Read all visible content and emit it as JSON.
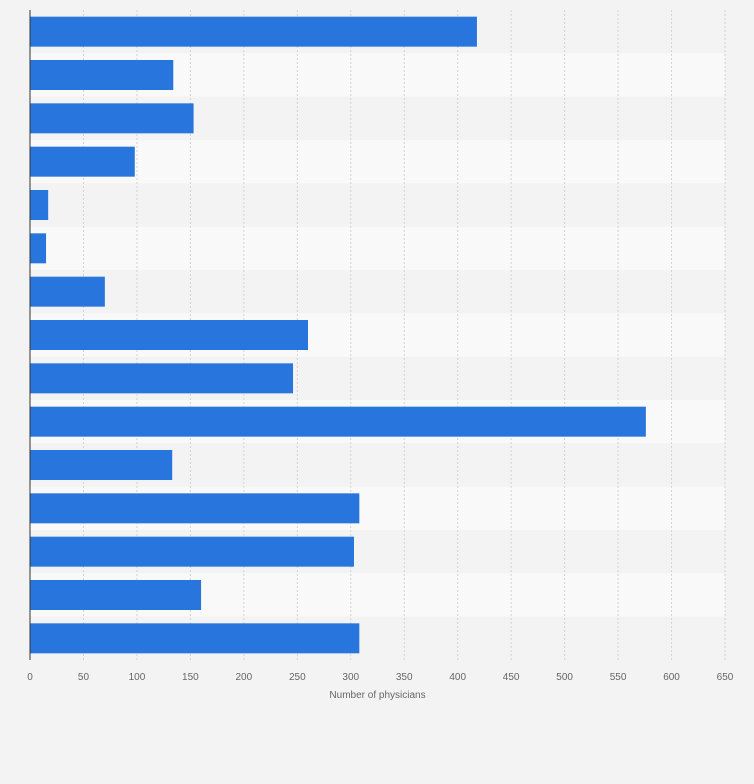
{
  "chart_data": {
    "type": "bar",
    "orientation": "horizontal",
    "categories": [
      "",
      "",
      "",
      "",
      "",
      "",
      "",
      "",
      "",
      "",
      "",
      "",
      "",
      "",
      ""
    ],
    "values": [
      418,
      134,
      153,
      98,
      17,
      15,
      70,
      260,
      246,
      576,
      133,
      308,
      303,
      160,
      308
    ],
    "title": "",
    "xlabel": "Number of physicians",
    "ylabel": "",
    "xlim": [
      0,
      650
    ],
    "xticks": [
      0,
      50,
      100,
      150,
      200,
      250,
      300,
      350,
      400,
      450,
      500,
      550,
      600,
      650
    ],
    "grid": true,
    "legend": "none",
    "colors": {
      "bar": "#2876dd",
      "background": "#f3f3f3",
      "band_light": "#f9f9f9",
      "band_dark": "#f3f3f3",
      "gridline": "#d2d2d2",
      "axis": "#333333",
      "tick_label": "#666666"
    }
  }
}
